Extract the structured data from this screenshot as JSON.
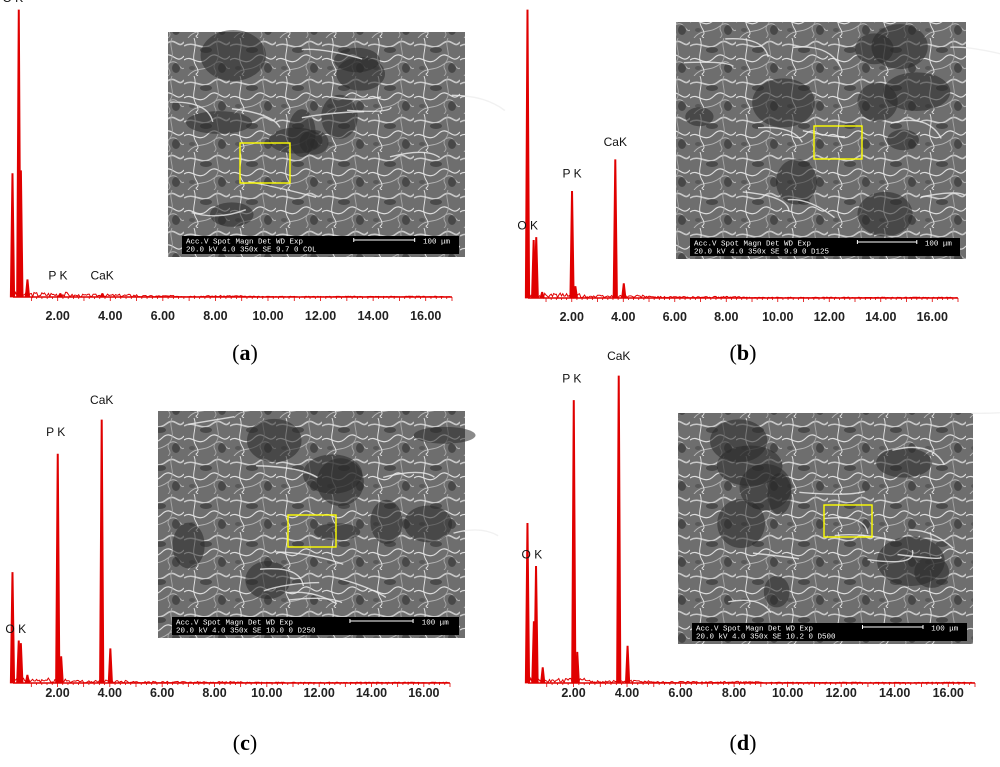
{
  "figure": {
    "colors": {
      "spectrum": "#e00000",
      "axis": "#e00000",
      "inset_box": "#ffff00",
      "sem_bar": "#000000"
    },
    "panels": [
      {
        "id": "a",
        "letter_text": "(a)",
        "letter": "a",
        "sem_info": {
          "line1": "Acc.V  Spot Magn   Det  WD  Exp",
          "line2": "20.0 kV 4.0  350x   SE  9.7  0     COL",
          "scale": "100 μm"
        }
      },
      {
        "id": "b",
        "letter_text": "(b)",
        "letter": "b",
        "sem_info": {
          "line1": "Acc.V  Spot Magn   Det  WD  Exp",
          "line2": "20.0 kV 4.0  350x   SE  9.9  0     D125",
          "scale": "100 μm"
        }
      },
      {
        "id": "c",
        "letter_text": "(c)",
        "letter": "c",
        "sem_info": {
          "line1": "Acc.V  Spot Magn   Det  WD  Exp",
          "line2": "20.0 kV 4.0  350x   SE  10.0 0     D250",
          "scale": "100 μm"
        }
      },
      {
        "id": "d",
        "letter_text": "(d)",
        "letter": "d",
        "sem_info": {
          "line1": "Acc.V  Spot Magn   Det  WD  Exp",
          "line2": "20.0 kV 4.0  350x   SE  10.2 0     D500",
          "scale": "100 μm"
        }
      }
    ]
  },
  "chart_data": [
    {
      "type": "line",
      "panel": "a",
      "xlabel": "",
      "ylabel": "",
      "xlim": [
        0,
        17
      ],
      "x_ticks": [
        "2.00",
        "4.00",
        "6.00",
        "8.00",
        "10.00",
        "12.00",
        "14.00",
        "16.00"
      ],
      "x_tick_values": [
        2,
        4,
        6,
        8,
        10,
        12,
        14,
        16
      ],
      "peaks": [
        {
          "x": 0.28,
          "y": 0.43
        },
        {
          "x": 0.52,
          "y": 1.0
        },
        {
          "x": 0.6,
          "y": 0.44
        },
        {
          "x": 0.85,
          "y": 0.06
        },
        {
          "x": 2.1,
          "y": 0.012
        },
        {
          "x": 3.7,
          "y": 0.012
        }
      ],
      "peak_labels": [
        {
          "text": "O K",
          "x": 0.52
        },
        {
          "text": "P K",
          "x": 2.01
        },
        {
          "text": "CaK",
          "x": 3.69
        }
      ]
    },
    {
      "type": "line",
      "panel": "b",
      "xlabel": "",
      "ylabel": "",
      "xlim": [
        0,
        17
      ],
      "x_ticks": [
        "2.00",
        "4.00",
        "6.00",
        "8.00",
        "10.00",
        "12.00",
        "14.00",
        "16.00"
      ],
      "x_tick_values": [
        2,
        4,
        6,
        8,
        10,
        12,
        14,
        16
      ],
      "peaks": [
        {
          "x": 0.28,
          "y": 1.0
        },
        {
          "x": 0.52,
          "y": 0.2
        },
        {
          "x": 0.62,
          "y": 0.21
        },
        {
          "x": 0.85,
          "y": 0.02
        },
        {
          "x": 2.01,
          "y": 0.37
        },
        {
          "x": 2.14,
          "y": 0.04
        },
        {
          "x": 3.69,
          "y": 0.48
        },
        {
          "x": 4.02,
          "y": 0.05
        }
      ],
      "peak_labels": [
        {
          "text": "O K",
          "x": 0.52
        },
        {
          "text": "P K",
          "x": 2.01
        },
        {
          "text": "CaK",
          "x": 3.69
        }
      ]
    },
    {
      "type": "line",
      "panel": "c",
      "xlabel": "",
      "ylabel": "",
      "xlim": [
        0,
        17
      ],
      "x_ticks": [
        "2.00",
        "4.00",
        "6.00",
        "8.00",
        "10.00",
        "12.00",
        "14.00",
        "16.00"
      ],
      "x_tick_values": [
        2,
        4,
        6,
        8,
        10,
        12,
        14,
        16
      ],
      "peaks": [
        {
          "x": 0.28,
          "y": 0.42
        },
        {
          "x": 0.52,
          "y": 0.16
        },
        {
          "x": 0.6,
          "y": 0.15
        },
        {
          "x": 0.85,
          "y": 0.03
        },
        {
          "x": 2.01,
          "y": 0.87
        },
        {
          "x": 2.14,
          "y": 0.1
        },
        {
          "x": 3.69,
          "y": 1.0
        },
        {
          "x": 4.02,
          "y": 0.13
        }
      ],
      "peak_labels": [
        {
          "text": "O K",
          "x": 0.52
        },
        {
          "text": "P K",
          "x": 2.01
        },
        {
          "text": "CaK",
          "x": 3.69
        }
      ]
    },
    {
      "type": "line",
      "panel": "d",
      "xlabel": "",
      "ylabel": "",
      "xlim": [
        0,
        17
      ],
      "x_ticks": [
        "2.00",
        "4.00",
        "6.00",
        "8.00",
        "10.00",
        "12.00",
        "14.00",
        "16.00"
      ],
      "x_tick_values": [
        2,
        4,
        6,
        8,
        10,
        12,
        14,
        16
      ],
      "peaks": [
        {
          "x": 0.28,
          "y": 0.52
        },
        {
          "x": 0.52,
          "y": 0.2
        },
        {
          "x": 0.6,
          "y": 0.38
        },
        {
          "x": 0.85,
          "y": 0.05
        },
        {
          "x": 2.01,
          "y": 0.92
        },
        {
          "x": 2.14,
          "y": 0.1
        },
        {
          "x": 3.69,
          "y": 1.0
        },
        {
          "x": 4.02,
          "y": 0.12
        }
      ],
      "peak_labels": [
        {
          "text": "O K",
          "x": 0.52
        },
        {
          "text": "P K",
          "x": 2.01
        },
        {
          "text": "CaK",
          "x": 3.69
        }
      ]
    }
  ]
}
